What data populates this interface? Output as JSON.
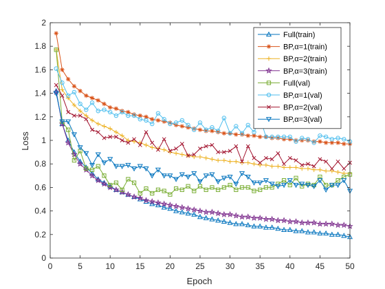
{
  "chart_data": {
    "type": "line",
    "xlabel": "Epoch",
    "ylabel": "Loss",
    "xlim": [
      0,
      50
    ],
    "ylim": [
      0,
      2
    ],
    "xticks": [
      "0",
      "5",
      "10",
      "15",
      "20",
      "25",
      "30",
      "35",
      "40",
      "45",
      "50"
    ],
    "yticks": [
      "0",
      "0.2",
      "0.4",
      "0.6",
      "0.8",
      "1",
      "1.2",
      "1.4",
      "1.6",
      "1.8",
      "2"
    ],
    "grid": false,
    "legend_position": "top-right",
    "x": [
      1,
      2,
      3,
      4,
      5,
      6,
      7,
      8,
      9,
      10,
      11,
      12,
      13,
      14,
      15,
      16,
      17,
      18,
      19,
      20,
      21,
      22,
      23,
      24,
      25,
      26,
      27,
      28,
      29,
      30,
      31,
      32,
      33,
      34,
      35,
      36,
      37,
      38,
      39,
      40,
      41,
      42,
      43,
      44,
      45,
      46,
      47,
      48,
      49,
      50
    ],
    "series": [
      {
        "name": "Full(train)",
        "color": "#0072BD",
        "marker": "triangle-up",
        "values": [
          1.42,
          1.14,
          1.0,
          0.9,
          0.82,
          0.77,
          0.72,
          0.67,
          0.64,
          0.61,
          0.58,
          0.56,
          0.54,
          0.52,
          0.5,
          0.48,
          0.46,
          0.45,
          0.43,
          0.42,
          0.4,
          0.39,
          0.38,
          0.37,
          0.35,
          0.34,
          0.33,
          0.32,
          0.31,
          0.3,
          0.29,
          0.29,
          0.28,
          0.27,
          0.27,
          0.26,
          0.26,
          0.25,
          0.24,
          0.24,
          0.23,
          0.23,
          0.22,
          0.22,
          0.21,
          0.21,
          0.2,
          0.2,
          0.19,
          0.18
        ]
      },
      {
        "name": "BP,α=1(train)",
        "color": "#D95319",
        "marker": "asterisk",
        "values": [
          1.91,
          1.6,
          1.52,
          1.46,
          1.42,
          1.38,
          1.36,
          1.34,
          1.31,
          1.28,
          1.27,
          1.25,
          1.24,
          1.22,
          1.21,
          1.2,
          1.18,
          1.17,
          1.16,
          1.15,
          1.13,
          1.12,
          1.11,
          1.1,
          1.09,
          1.08,
          1.08,
          1.07,
          1.06,
          1.06,
          1.05,
          1.05,
          1.04,
          1.04,
          1.03,
          1.03,
          1.02,
          1.02,
          1.01,
          1.01,
          1.0,
          1.0,
          1.0,
          0.99,
          0.99,
          0.98,
          0.98,
          0.98,
          0.97,
          0.97
        ]
      },
      {
        "name": "BP,α=2(train)",
        "color": "#EDB120",
        "marker": "plus",
        "values": [
          1.77,
          1.43,
          1.36,
          1.3,
          1.25,
          1.21,
          1.17,
          1.14,
          1.12,
          1.1,
          1.07,
          1.04,
          1.0,
          0.99,
          0.98,
          0.96,
          0.94,
          0.93,
          0.92,
          0.9,
          0.89,
          0.88,
          0.87,
          0.86,
          0.86,
          0.85,
          0.84,
          0.83,
          0.83,
          0.82,
          0.82,
          0.81,
          0.81,
          0.8,
          0.79,
          0.79,
          0.78,
          0.78,
          0.77,
          0.77,
          0.77,
          0.76,
          0.76,
          0.75,
          0.75,
          0.74,
          0.74,
          0.73,
          0.72,
          0.72
        ]
      },
      {
        "name": "BP,α=3(train)",
        "color": "#7E2F8E",
        "marker": "star",
        "values": [
          1.41,
          1.14,
          0.98,
          0.88,
          0.8,
          0.75,
          0.7,
          0.66,
          0.63,
          0.6,
          0.58,
          0.56,
          0.54,
          0.52,
          0.51,
          0.49,
          0.48,
          0.47,
          0.46,
          0.45,
          0.44,
          0.43,
          0.42,
          0.41,
          0.4,
          0.39,
          0.39,
          0.38,
          0.37,
          0.37,
          0.36,
          0.35,
          0.35,
          0.34,
          0.34,
          0.33,
          0.33,
          0.32,
          0.32,
          0.31,
          0.31,
          0.3,
          0.3,
          0.3,
          0.29,
          0.29,
          0.29,
          0.28,
          0.28,
          0.27
        ]
      },
      {
        "name": "Full(val)",
        "color": "#77AC30",
        "marker": "square",
        "values": [
          1.77,
          1.16,
          1.09,
          0.83,
          0.91,
          0.76,
          0.75,
          0.78,
          0.7,
          0.62,
          0.64,
          0.58,
          0.67,
          0.64,
          0.55,
          0.59,
          0.55,
          0.58,
          0.57,
          0.54,
          0.59,
          0.58,
          0.61,
          0.57,
          0.61,
          0.58,
          0.6,
          0.58,
          0.6,
          0.62,
          0.58,
          0.6,
          0.6,
          0.57,
          0.58,
          0.6,
          0.6,
          0.63,
          0.66,
          0.62,
          0.68,
          0.61,
          0.63,
          0.62,
          0.69,
          0.62,
          0.62,
          0.66,
          0.69,
          0.71
        ]
      },
      {
        "name": "BP,α=1(val)",
        "color": "#4DBEEE",
        "marker": "circle",
        "values": [
          1.61,
          1.49,
          1.38,
          1.41,
          1.31,
          1.26,
          1.32,
          1.25,
          1.26,
          1.24,
          1.21,
          1.24,
          1.21,
          1.21,
          1.18,
          1.17,
          1.14,
          1.23,
          1.18,
          1.14,
          1.15,
          1.17,
          1.13,
          1.09,
          1.15,
          1.09,
          1.11,
          1.08,
          1.19,
          1.06,
          1.12,
          1.06,
          1.13,
          1.07,
          1.19,
          1.03,
          1.03,
          1.03,
          1.03,
          1.03,
          0.99,
          1.02,
          1.01,
          0.98,
          1.04,
          1.03,
          1.01,
          1.02,
          1.01,
          0.99
        ]
      },
      {
        "name": "BP,α=2(val)",
        "color": "#A2142F",
        "marker": "cross",
        "values": [
          1.47,
          1.38,
          1.24,
          1.21,
          1.21,
          1.18,
          1.09,
          1.07,
          1.02,
          1.03,
          1.03,
          1.0,
          0.98,
          1.01,
          0.96,
          1.07,
          0.98,
          0.92,
          1.01,
          0.91,
          0.93,
          0.97,
          0.87,
          0.88,
          0.93,
          0.95,
          0.96,
          0.9,
          0.9,
          0.91,
          0.95,
          0.82,
          0.95,
          0.85,
          0.81,
          0.85,
          0.84,
          0.89,
          0.8,
          0.85,
          0.83,
          0.79,
          0.8,
          0.78,
          0.84,
          0.82,
          0.76,
          0.82,
          0.76,
          0.81
        ]
      },
      {
        "name": "BP,α=3(val)",
        "color": "#0072BD",
        "marker": "triangle-down",
        "values": [
          1.4,
          1.16,
          1.16,
          1.05,
          0.94,
          0.89,
          0.79,
          0.88,
          0.81,
          0.84,
          0.78,
          0.78,
          0.79,
          0.76,
          0.78,
          0.76,
          0.7,
          0.75,
          0.7,
          0.7,
          0.67,
          0.71,
          0.69,
          0.72,
          0.65,
          0.7,
          0.71,
          0.65,
          0.68,
          0.69,
          0.63,
          0.72,
          0.69,
          0.64,
          0.64,
          0.66,
          0.63,
          0.61,
          0.62,
          0.66,
          0.62,
          0.63,
          0.62,
          0.61,
          0.66,
          0.58,
          0.62,
          0.62,
          0.66,
          0.57
        ]
      }
    ]
  }
}
